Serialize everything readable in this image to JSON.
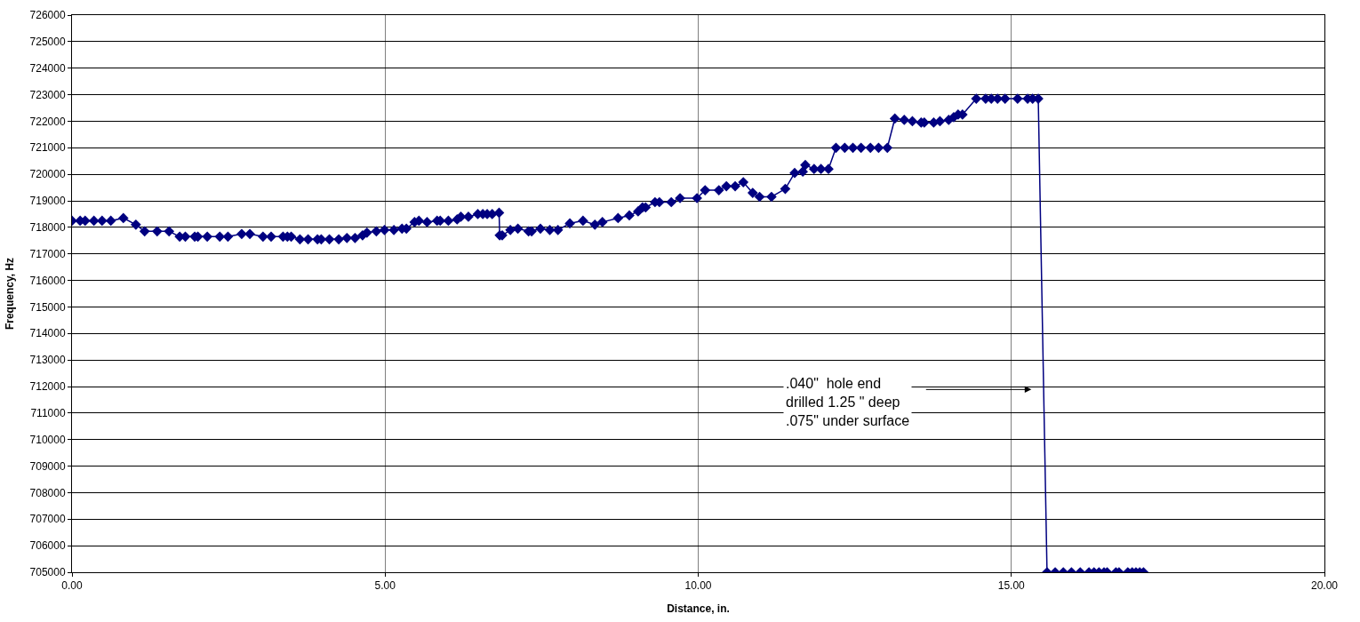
{
  "chart_data": {
    "type": "line",
    "xlabel": "Distance, in.",
    "ylabel": "Frequency, Hz",
    "x": [
      0.0,
      0.13,
      0.21,
      0.35,
      0.48,
      0.62,
      0.82,
      1.02,
      1.16,
      1.36,
      1.55,
      1.72,
      1.81,
      1.96,
      2.01,
      2.16,
      2.36,
      2.49,
      2.71,
      2.84,
      3.05,
      3.18,
      3.37,
      3.44,
      3.5,
      3.64,
      3.77,
      3.92,
      3.98,
      4.11,
      4.26,
      4.39,
      4.52,
      4.64,
      4.71,
      4.86,
      4.99,
      5.14,
      5.27,
      5.34,
      5.47,
      5.54,
      5.67,
      5.83,
      5.88,
      6.01,
      6.15,
      6.21,
      6.33,
      6.48,
      6.56,
      6.63,
      6.71,
      6.82,
      6.83,
      6.87,
      7.0,
      7.12,
      7.29,
      7.34,
      7.48,
      7.63,
      7.76,
      7.95,
      8.16,
      8.35,
      8.47,
      8.72,
      8.9,
      9.04,
      9.11,
      9.16,
      9.31,
      9.38,
      9.57,
      9.71,
      9.98,
      10.11,
      10.33,
      10.45,
      10.59,
      10.72,
      10.87,
      10.98,
      11.17,
      11.39,
      11.54,
      11.67,
      11.71,
      11.85,
      11.96,
      12.08,
      12.2,
      12.34,
      12.47,
      12.6,
      12.75,
      12.88,
      13.02,
      13.14,
      13.29,
      13.42,
      13.56,
      13.61,
      13.76,
      13.86,
      14.0,
      14.08,
      14.15,
      14.22,
      14.44,
      14.59,
      14.68,
      14.78,
      14.9,
      15.1,
      15.26,
      15.34,
      15.43,
      15.57,
      15.7,
      15.83,
      15.96,
      16.1,
      16.24,
      16.32,
      16.4,
      16.48,
      16.53,
      16.67,
      16.72,
      16.86,
      16.93,
      16.99,
      17.05,
      17.11
    ],
    "series": [
      {
        "color": "#000080",
        "values": [
          718250,
          718250,
          718250,
          718250,
          718250,
          718250,
          718350,
          718100,
          717850,
          717850,
          717850,
          717650,
          717650,
          717650,
          717650,
          717650,
          717650,
          717650,
          717750,
          717750,
          717650,
          717650,
          717650,
          717650,
          717650,
          717550,
          717550,
          717550,
          717550,
          717550,
          717550,
          717600,
          717600,
          717700,
          717800,
          717850,
          717900,
          717900,
          717950,
          717950,
          718200,
          718250,
          718200,
          718250,
          718250,
          718250,
          718300,
          718400,
          718400,
          718500,
          718500,
          718500,
          718500,
          718550,
          717700,
          717700,
          717900,
          717950,
          717850,
          717850,
          717950,
          717900,
          717900,
          718150,
          718250,
          718100,
          718200,
          718350,
          718450,
          718600,
          718750,
          718750,
          718950,
          718950,
          718950,
          719100,
          719100,
          719400,
          719400,
          719550,
          719550,
          719700,
          719300,
          719150,
          719150,
          719450,
          720050,
          720100,
          720350,
          720200,
          720200,
          720200,
          721000,
          721000,
          721000,
          721000,
          721000,
          721000,
          721000,
          722100,
          722050,
          722000,
          721950,
          721950,
          721950,
          722000,
          722050,
          722150,
          722250,
          722250,
          722850,
          722850,
          722850,
          722850,
          722850,
          722850,
          722850,
          722850,
          722850,
          705000,
          705000,
          705000,
          705000,
          705000,
          705000,
          705000,
          705000,
          705000,
          705000,
          705000,
          705000,
          705000,
          705000,
          705000,
          705000,
          705000
        ]
      }
    ],
    "xlim": [
      0,
      20
    ],
    "xticks": [
      {
        "value": 0,
        "label": "0.00"
      },
      {
        "value": 5,
        "label": "5.00"
      },
      {
        "value": 10,
        "label": "10.00"
      },
      {
        "value": 15,
        "label": "15.00"
      },
      {
        "value": 20,
        "label": "20.00"
      }
    ],
    "ylim": [
      705000,
      726000
    ],
    "yticks": [
      705000,
      706000,
      707000,
      708000,
      709000,
      710000,
      711000,
      712000,
      713000,
      714000,
      715000,
      716000,
      717000,
      718000,
      719000,
      720000,
      721000,
      722000,
      723000,
      724000,
      725000,
      726000
    ],
    "annotations": [
      ".040\"  hole end\ndrilled 1.25 \" deep\n.075\" under surface"
    ],
    "grid": true,
    "marker": "diamond",
    "line_style": "solid"
  }
}
